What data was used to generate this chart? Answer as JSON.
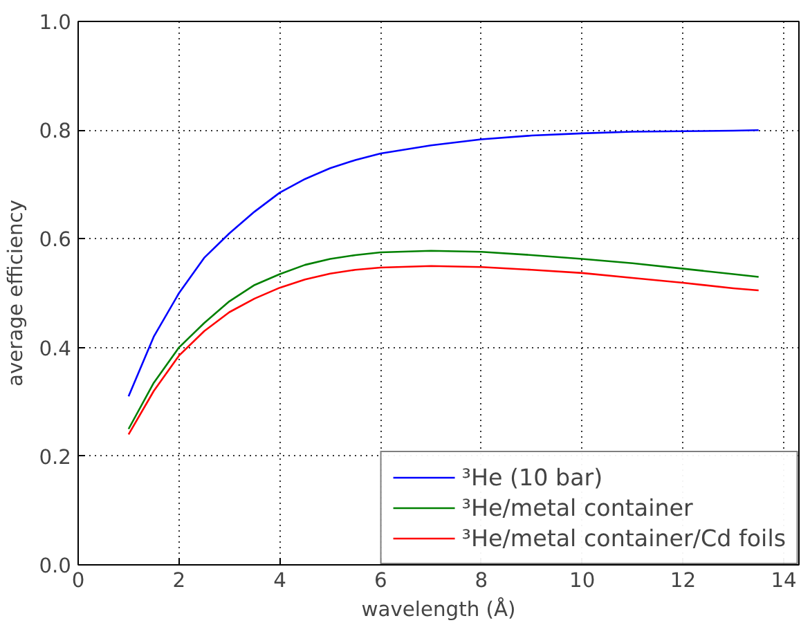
{
  "chart_data": {
    "type": "line",
    "xlabel": "wavelength (Å)",
    "ylabel": "average efficiency",
    "x": [
      1,
      1.5,
      2,
      2.5,
      3,
      3.5,
      4,
      4.5,
      5,
      5.5,
      6,
      7,
      8,
      9,
      10,
      11,
      12,
      13,
      13.5
    ],
    "series": [
      {
        "name": "³He (10 bar)",
        "color": "#0000ff",
        "values": [
          0.31,
          0.42,
          0.5,
          0.565,
          0.61,
          0.65,
          0.685,
          0.71,
          0.73,
          0.745,
          0.757,
          0.772,
          0.783,
          0.79,
          0.794,
          0.797,
          0.798,
          0.799,
          0.8
        ]
      },
      {
        "name": "³He/metal container",
        "color": "#008000",
        "values": [
          0.25,
          0.335,
          0.4,
          0.445,
          0.485,
          0.515,
          0.535,
          0.552,
          0.563,
          0.57,
          0.575,
          0.578,
          0.576,
          0.57,
          0.563,
          0.555,
          0.545,
          0.535,
          0.53
        ]
      },
      {
        "name": "³He/metal container/Cd foils",
        "color": "#ff0000",
        "values": [
          0.24,
          0.32,
          0.385,
          0.43,
          0.465,
          0.49,
          0.51,
          0.525,
          0.536,
          0.543,
          0.547,
          0.55,
          0.548,
          0.543,
          0.537,
          0.528,
          0.519,
          0.509,
          0.505
        ]
      }
    ],
    "xlim": [
      0,
      14.3
    ],
    "ylim": [
      0,
      1.0
    ],
    "xticks": [
      0,
      2,
      4,
      6,
      8,
      10,
      12,
      14
    ],
    "yticks": [
      {
        "value": 0,
        "label": "0.0"
      },
      {
        "value": 0.2,
        "label": "0.2"
      },
      {
        "value": 0.4,
        "label": "0.4"
      },
      {
        "value": 0.6,
        "label": "0.6"
      },
      {
        "value": 0.8,
        "label": "0.8"
      },
      {
        "value": 1.0,
        "label": "1.0"
      }
    ],
    "grid": true,
    "legend": "bottom right",
    "line_style": "solid",
    "marker": "none"
  }
}
